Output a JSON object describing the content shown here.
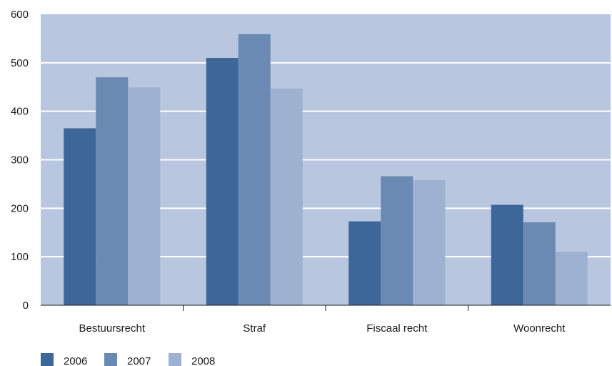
{
  "chart_data": {
    "type": "bar",
    "categories": [
      "Bestuursrecht",
      "Straf",
      "Fiscaal recht",
      "Woonrecht"
    ],
    "series": [
      {
        "name": "2006",
        "values": [
          365,
          510,
          173,
          207
        ],
        "color": "#3d6799"
      },
      {
        "name": "2007",
        "values": [
          470,
          559,
          266,
          171
        ],
        "color": "#6a89b3"
      },
      {
        "name": "2008",
        "values": [
          449,
          447,
          258,
          110
        ],
        "color": "#9eb1d1"
      }
    ],
    "title": "",
    "xlabel": "",
    "ylabel": "",
    "ylim": [
      0,
      600
    ],
    "yticks": [
      0,
      100,
      200,
      300,
      400,
      500,
      600
    ],
    "grid": true,
    "legend_position": "bottom-left",
    "plot_background": "#b8c6df",
    "grid_color": "#ffffff"
  }
}
